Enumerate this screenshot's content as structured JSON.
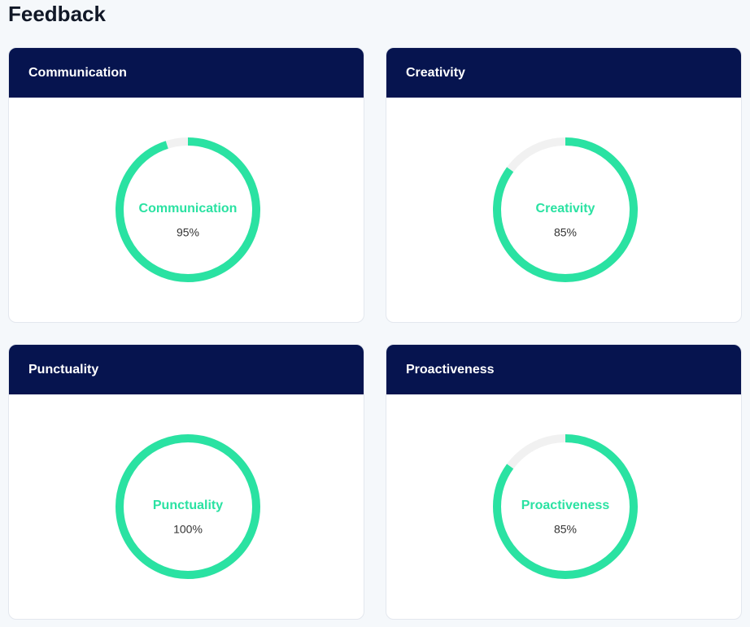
{
  "title": "Feedback",
  "cards": [
    {
      "title": "Communication",
      "label": "Communication",
      "value": 95,
      "value_label": "95%"
    },
    {
      "title": "Creativity",
      "label": "Creativity",
      "value": 85,
      "value_label": "85%"
    },
    {
      "title": "Punctuality",
      "label": "Punctuality",
      "value": 100,
      "value_label": "100%"
    },
    {
      "title": "Proactiveness",
      "label": "Proactiveness",
      "value": 85,
      "value_label": "85%"
    }
  ]
}
